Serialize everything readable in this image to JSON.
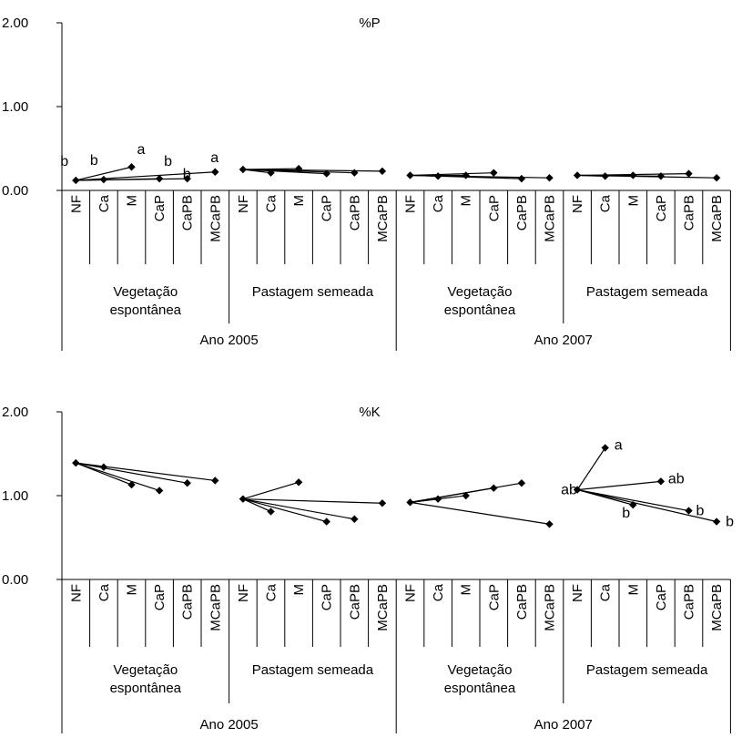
{
  "chart_data": [
    {
      "type": "line",
      "title": "%P",
      "ylim": [
        0,
        2
      ],
      "yticks": [
        "0.00",
        "1.00",
        "2.00"
      ],
      "years": [
        "Ano 2005",
        "Ano 2007"
      ],
      "groups": [
        "Vegetação\nespontânea",
        "Pastagem semeada",
        "Vegetação\nespontânea",
        "Pastagem semeada"
      ],
      "categories": [
        "NF",
        "Ca",
        "M",
        "CaP",
        "CaPB",
        "MCaPB"
      ],
      "segments": [
        {
          "year": "Ano 2005",
          "group": "Vegetação espontânea",
          "from": "NF",
          "from_value": 0.12,
          "to": [
            {
              "cat": "Ca",
              "value": 0.13
            },
            {
              "cat": "M",
              "value": 0.28
            },
            {
              "cat": "CaP",
              "value": 0.14
            },
            {
              "cat": "CaPB",
              "value": 0.14
            },
            {
              "cat": "MCaPB",
              "value": 0.22
            }
          ]
        },
        {
          "year": "Ano 2005",
          "group": "Pastagem semeada",
          "from": "NF",
          "from_value": 0.25,
          "to": [
            {
              "cat": "Ca",
              "value": 0.21
            },
            {
              "cat": "M",
              "value": 0.26
            },
            {
              "cat": "CaP",
              "value": 0.2
            },
            {
              "cat": "CaPB",
              "value": 0.21
            },
            {
              "cat": "MCaPB",
              "value": 0.23
            }
          ]
        },
        {
          "year": "Ano 2007",
          "group": "Vegetação espontânea",
          "from": "NF",
          "from_value": 0.18,
          "to": [
            {
              "cat": "Ca",
              "value": 0.17
            },
            {
              "cat": "M",
              "value": 0.18
            },
            {
              "cat": "CaP",
              "value": 0.21
            },
            {
              "cat": "CaPB",
              "value": 0.14
            },
            {
              "cat": "MCaPB",
              "value": 0.15
            }
          ]
        },
        {
          "year": "Ano 2007",
          "group": "Pastagem semeada",
          "from": "NF",
          "from_value": 0.18,
          "to": [
            {
              "cat": "Ca",
              "value": 0.17
            },
            {
              "cat": "M",
              "value": 0.18
            },
            {
              "cat": "CaP",
              "value": 0.17
            },
            {
              "cat": "CaPB",
              "value": 0.2
            },
            {
              "cat": "MCaPB",
              "value": 0.15
            }
          ]
        }
      ],
      "annotations": [
        {
          "text": "b",
          "cat": "NF",
          "group": "Vegetação espontânea",
          "year": "Ano 2005",
          "value": 0.12
        },
        {
          "text": "b",
          "cat": "Ca",
          "group": "Vegetação espontânea",
          "year": "Ano 2005",
          "value": 0.13
        },
        {
          "text": "a",
          "cat": "M",
          "group": "Vegetação espontânea",
          "year": "Ano 2005",
          "value": 0.28
        },
        {
          "text": "b",
          "cat": "CaP",
          "group": "Vegetação espontânea",
          "year": "Ano 2005",
          "value": 0.14
        },
        {
          "text": "b",
          "cat": "CaPB",
          "group": "Vegetação espontânea",
          "year": "Ano 2005",
          "value": 0.14
        },
        {
          "text": "a",
          "cat": "MCaPB",
          "group": "Vegetação espontânea",
          "year": "Ano 2005",
          "value": 0.22
        }
      ]
    },
    {
      "type": "line",
      "title": "%K",
      "ylim": [
        0,
        2
      ],
      "yticks": [
        "0.00",
        "1.00",
        "2.00"
      ],
      "years": [
        "Ano 2005",
        "Ano 2007"
      ],
      "groups": [
        "Vegetação\nespontânea",
        "Pastagem semeada",
        "Vegetação\nespontânea",
        "Pastagem semeada"
      ],
      "categories": [
        "NF",
        "Ca",
        "M",
        "CaP",
        "CaPB",
        "MCaPB"
      ],
      "segments": [
        {
          "year": "Ano 2005",
          "group": "Vegetação espontânea",
          "from": "NF",
          "from_value": 1.39,
          "to": [
            {
              "cat": "Ca",
              "value": 1.34
            },
            {
              "cat": "M",
              "value": 1.13
            },
            {
              "cat": "CaP",
              "value": 1.06
            },
            {
              "cat": "CaPB",
              "value": 1.15
            },
            {
              "cat": "MCaPB",
              "value": 1.18
            }
          ]
        },
        {
          "year": "Ano 2005",
          "group": "Pastagem semeada",
          "from": "NF",
          "from_value": 0.96,
          "to": [
            {
              "cat": "Ca",
              "value": 0.81
            },
            {
              "cat": "M",
              "value": 1.16
            },
            {
              "cat": "CaP",
              "value": 0.69
            },
            {
              "cat": "CaPB",
              "value": 0.72
            },
            {
              "cat": "MCaPB",
              "value": 0.91
            }
          ]
        },
        {
          "year": "Ano 2007",
          "group": "Vegetação espontânea",
          "from": "NF",
          "from_value": 0.92,
          "to": [
            {
              "cat": "Ca",
              "value": 0.96
            },
            {
              "cat": "M",
              "value": 1.0
            },
            {
              "cat": "CaP",
              "value": 1.09
            },
            {
              "cat": "CaPB",
              "value": 1.15
            },
            {
              "cat": "MCaPB",
              "value": 0.66
            }
          ]
        },
        {
          "year": "Ano 2007",
          "group": "Pastagem semeada",
          "from": "NF",
          "from_value": 1.07,
          "to": [
            {
              "cat": "Ca",
              "value": 1.57
            },
            {
              "cat": "M",
              "value": 0.89
            },
            {
              "cat": "CaP",
              "value": 1.17
            },
            {
              "cat": "CaPB",
              "value": 0.82
            },
            {
              "cat": "MCaPB",
              "value": 0.69
            }
          ]
        }
      ],
      "annotations": [
        {
          "text": "ab",
          "cat": "NF",
          "group": "Pastagem semeada",
          "year": "Ano 2007",
          "value": 1.07
        },
        {
          "text": "a",
          "cat": "Ca",
          "group": "Pastagem semeada",
          "year": "Ano 2007",
          "value": 1.57
        },
        {
          "text": "b",
          "cat": "M",
          "group": "Pastagem semeada",
          "year": "Ano 2007",
          "value": 0.89
        },
        {
          "text": "ab",
          "cat": "CaP",
          "group": "Pastagem semeada",
          "year": "Ano 2007",
          "value": 1.17
        },
        {
          "text": "b",
          "cat": "CaPB",
          "group": "Pastagem semeada",
          "year": "Ano 2007",
          "value": 0.82
        },
        {
          "text": "b",
          "cat": "MCaPB",
          "group": "Pastagem semeada",
          "year": "Ano 2007",
          "value": 0.69
        }
      ]
    }
  ]
}
